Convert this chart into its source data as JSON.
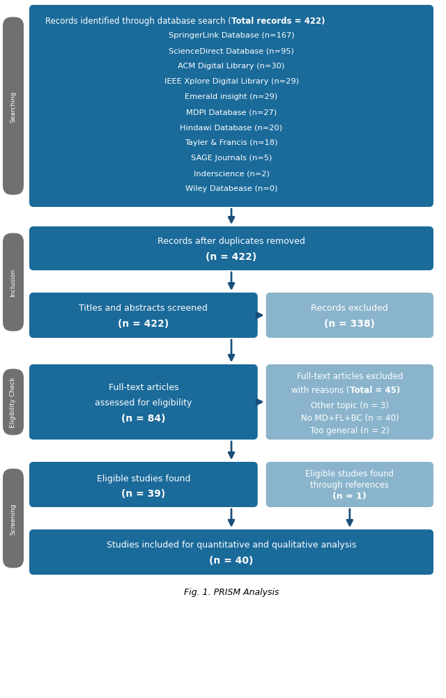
{
  "bg_color": "#ffffff",
  "dark_blue": "#1a6a9a",
  "light_blue": "#8ab4cc",
  "side_gray": "#707070",
  "arrow_color": "#1a4f7a",
  "box1_line0_normal": "Records identified through database search (",
  "box1_line0_bold": "Total records = 422",
  "box1_line0_close": ")",
  "box1_lines": [
    "SpringerLink Database (n=167)",
    "ScienceDirect Database (n=95)",
    "ACM Digital Library (n=30)",
    "IEEE Xplore Digital Library (n=29)",
    "Emerald insight (n=29)",
    "MDPI Database (n=27)",
    "Hindawi Database (n=20)",
    "Tayler & Francis (n=18)",
    "SAGE Journals (n=5)",
    "Inderscience (n=2)",
    "Wiley Databease (n=0)"
  ],
  "box2_line1": "Records after duplicates removed",
  "box2_line2": "(n = 422)",
  "box3_line1": "Titles and abstracts screened",
  "box3_line2": "(n = 422)",
  "box4_line1": "Records excluded",
  "box4_line2": "(n = 338)",
  "box5_line1": "Full-text articles",
  "box5_line2": "assessed for eligibility",
  "box5_line3": "(n = 84)",
  "box6_line1": "Full-text articles excluded",
  "box6_line2_normal": "with reasons (",
  "box6_line2_bold": "Total = 45",
  "box6_line2_close": ")",
  "box6_line3": "Other topic (n = 3)",
  "box6_line4": "No MD+FL+BC (n = 40)",
  "box6_line5": "Too general (n = 2)",
  "box7_line1": "Eligible studies found",
  "box7_line2": "(n = 39)",
  "box8_line1": "Eligible studies found",
  "box8_line2": "through references",
  "box8_line3": "(n = 1)",
  "box9_line1": "Studies included for quantitative and qualitative analysis",
  "box9_line2": "(n = 40)",
  "label_searching": "Searching",
  "label_inclusion": "Inclusion",
  "label_eligibility": "Eligibility Check",
  "label_screening": "Screening",
  "caption": "Fig. 1. PRISM Analysis"
}
